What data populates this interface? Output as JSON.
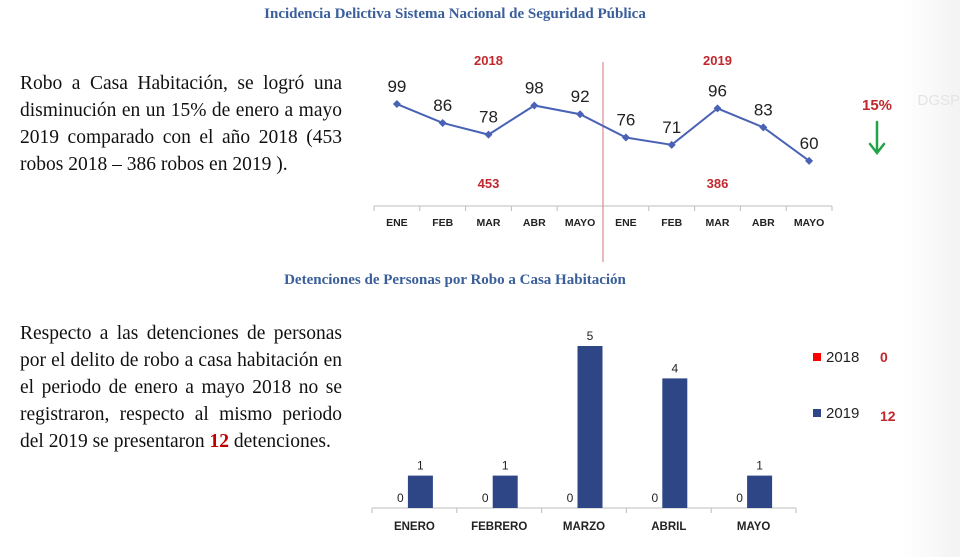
{
  "section1": {
    "title": "Incidencia Delictiva Sistema Nacional de Seguridad Pública",
    "text": "Robo a Casa Habitación, se logró una disminución en un 15% de enero a mayo 2019 comparado con el año 2018 (453 robos 2018 – 386 robos en 2019 )."
  },
  "section2": {
    "title": "Detenciones de Personas por Robo a Casa Habitación",
    "text_before": "Respecto a las detenciones de personas por el delito de robo a casa habitación en el periodo de enero a mayo 2018 no se registraron, respecto al mismo periodo del 2019 se presentaron ",
    "text_highlight": "12",
    "text_after": " detenciones."
  },
  "edge_text": "DGSP",
  "colors": {
    "line": "#4a62b5",
    "bar2019": "#2e4686",
    "bar2018": "#ff0000",
    "red_text": "#c0282d",
    "arrow": "#22a34a",
    "title": "#3a5f9a"
  },
  "chart_data": [
    {
      "type": "line",
      "title": "",
      "x": [
        "ENE",
        "FEB",
        "MAR",
        "ABR",
        "MAYO",
        "ENE",
        "FEB",
        "MAR",
        "ABR",
        "MAYO"
      ],
      "series": [
        {
          "values": [
            99,
            86,
            78,
            98,
            92,
            76,
            71,
            96,
            83,
            60
          ]
        }
      ],
      "groups": [
        {
          "year": "2018",
          "total": "453"
        },
        {
          "year": "2019",
          "total": "386"
        }
      ],
      "change_label": "15%",
      "change_direction": "down",
      "ylim": [
        40,
        110
      ],
      "grid": false
    },
    {
      "type": "bar",
      "title": "",
      "categories": [
        "ENERO",
        "FEBRERO",
        "MARZO",
        "ABRIL",
        "MAYO"
      ],
      "series": [
        {
          "name": "2018",
          "values": [
            0,
            0,
            0,
            0,
            0
          ]
        },
        {
          "name": "2019",
          "values": [
            1,
            1,
            5,
            4,
            1
          ]
        }
      ],
      "legend": [
        {
          "name": "2018",
          "total": "0"
        },
        {
          "name": "2019",
          "total": "12"
        }
      ],
      "legend_position": "right",
      "ylim": [
        0,
        5
      ],
      "grid": false
    }
  ]
}
